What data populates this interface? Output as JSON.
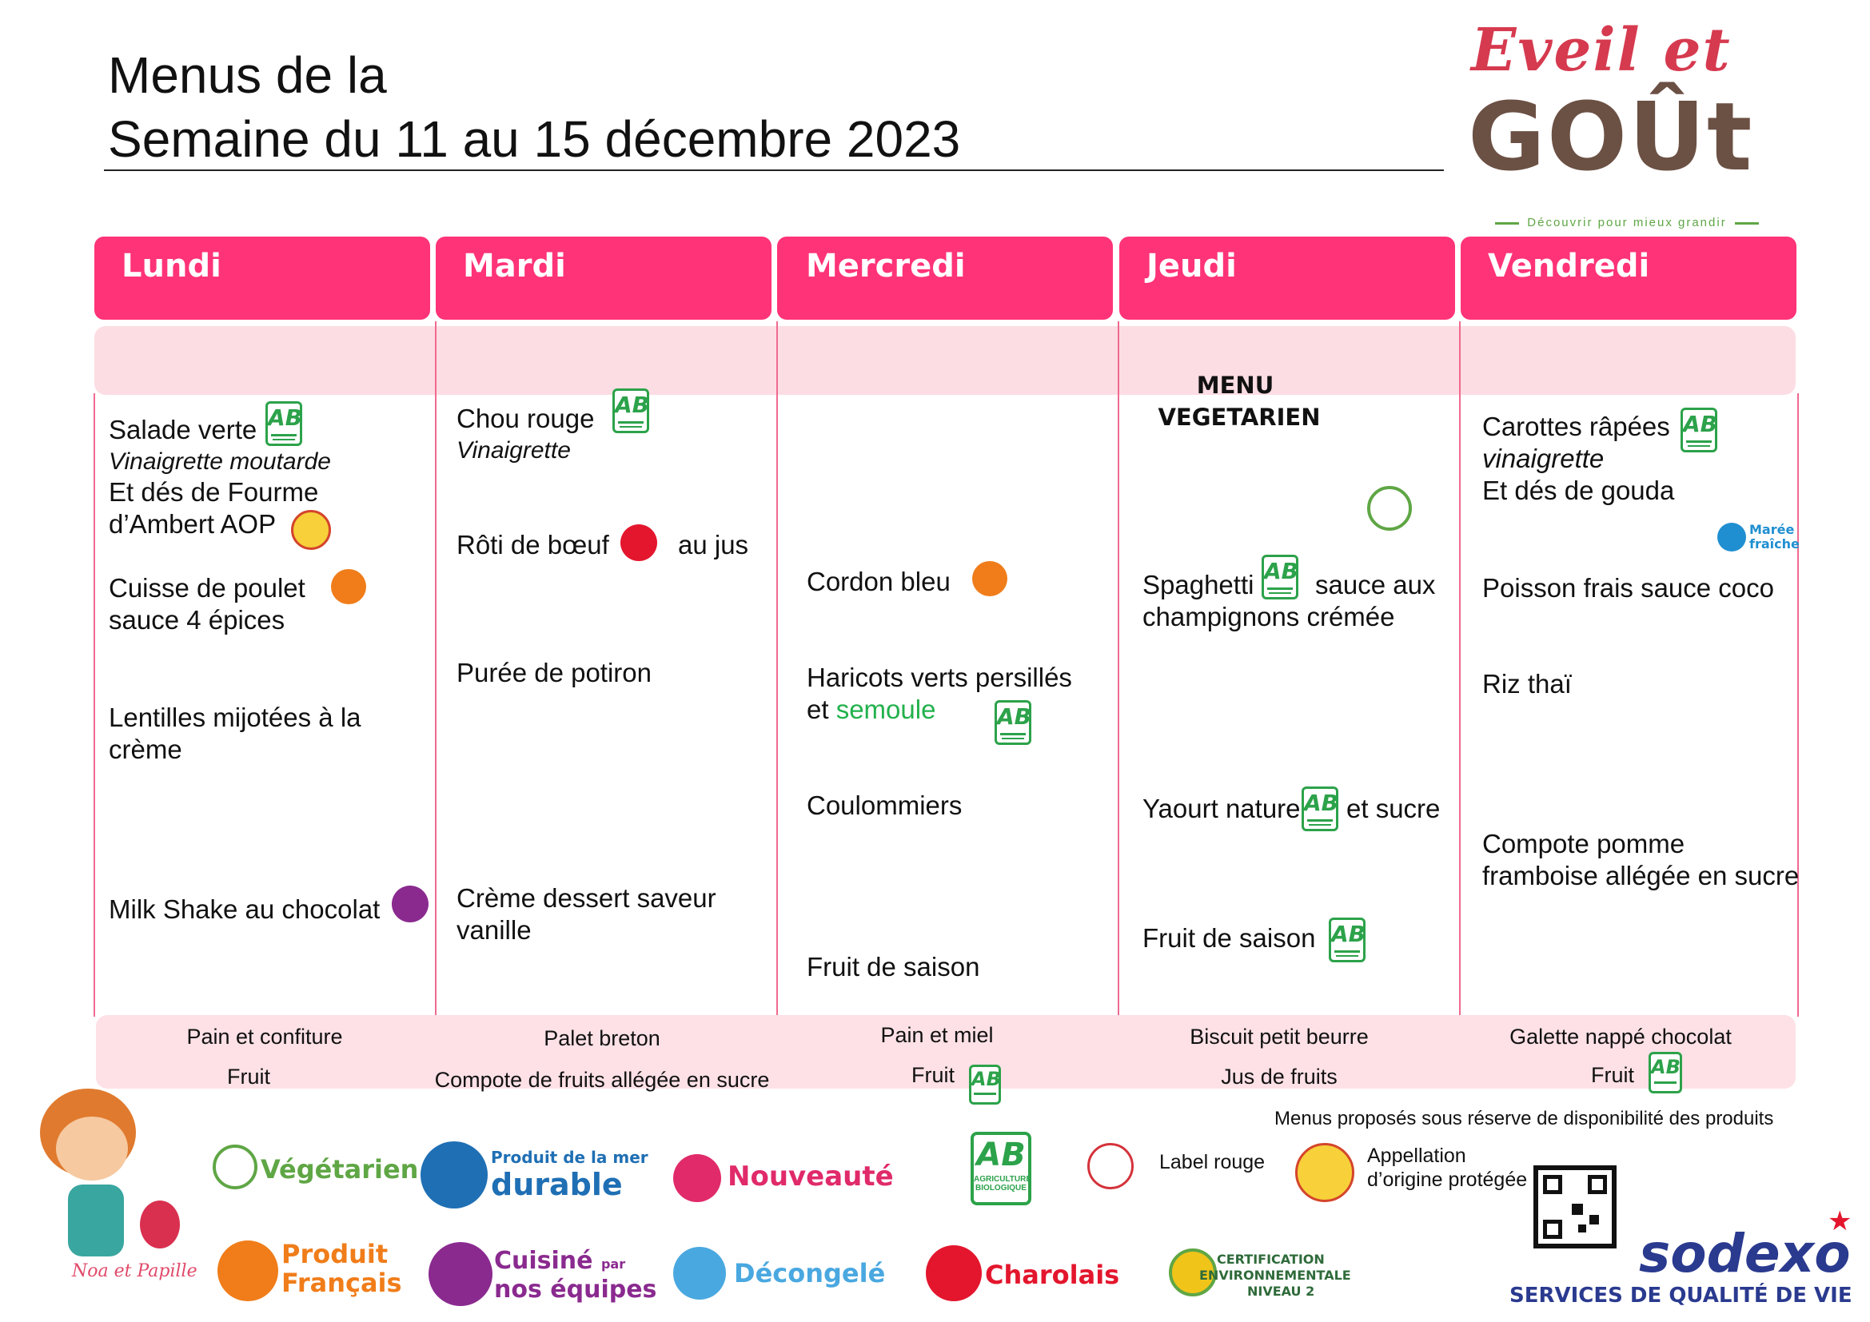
{
  "title": {
    "line1": "Menus de la",
    "line2": "Semaine du 11 au 15 décembre 2023"
  },
  "logo": {
    "eveil": "Eveil et",
    "gout": "GOÛt",
    "tagline": "Découvrir pour mieux grandir"
  },
  "days": [
    "Lundi",
    "Mardi",
    "Mercredi",
    "Jeudi",
    "Vendredi"
  ],
  "lundi": {
    "starter": "Salade verte",
    "starter_dressing": "Vinaigrette moutarde",
    "starter_extra1": "Et dés de Fourme",
    "starter_extra2": "d’Ambert AOP",
    "main1": "Cuisse de poulet",
    "main2": "sauce 4 épices",
    "side1": "Lentilles mijotées à la",
    "side2": "crème",
    "dessert": "Milk Shake au chocolat"
  },
  "mardi": {
    "starter": "Chou rouge",
    "starter_dressing": "Vinaigrette",
    "main": "Rôti de bœuf",
    "main_suffix": "au jus",
    "side": "Purée de potiron",
    "dessert1": "Crème dessert saveur",
    "dessert2": "vanille"
  },
  "mercredi": {
    "main": "Cordon bleu",
    "side1": "Haricots verts persillés",
    "side2_prefix": "et",
    "side2_green": "semoule",
    "cheese": "Coulommiers",
    "dessert": "Fruit de saison"
  },
  "jeudi": {
    "menu_title1": "MENU",
    "menu_title2": "VEGETARIEN",
    "main_prefix": "Spaghetti",
    "main_suffix": "sauce aux",
    "main2": "champignons crémée",
    "dairy_prefix": "Yaourt nature",
    "dairy_suffix": "et sucre",
    "dessert": "Fruit de saison"
  },
  "vendredi": {
    "starter": "Carottes râpées",
    "starter_dressing": "vinaigrette",
    "starter_extra": "Et dés de gouda",
    "mare_label1": "Marée",
    "mare_label2": "fraîche",
    "main": "Poisson frais sauce coco",
    "side": "Riz thaï",
    "dessert1": "Compote pomme",
    "dessert2": "framboise allégée en sucre"
  },
  "snacks": {
    "lundi": [
      "Pain et confiture",
      "Fruit"
    ],
    "mardi": [
      "Palet breton",
      "Compote de fruits allégée en sucre"
    ],
    "mercredi": [
      "Pain et  miel",
      "Fruit"
    ],
    "jeudi": [
      "Biscuit petit beurre",
      "Jus de fruits"
    ],
    "vendredi": [
      "Galette nappé chocolat",
      "Fruit"
    ]
  },
  "disclaimer": "Menus proposés sous réserve de disponibilité des produits",
  "legend": {
    "vegetarien": "Végétarien",
    "produit_mer_1": "Produit de la mer",
    "produit_mer_2": "durable",
    "nouveaute": "Nouveauté",
    "label_rouge": "Label rouge",
    "aop_1": "Appellation",
    "aop_2": "d’origine protégée",
    "produit_francais_1": "Produit",
    "produit_francais_2": "Français",
    "cuisine_1": "Cuisiné",
    "cuisine_par": "par",
    "cuisine_2": "nos équipes",
    "decongele": "Décongelé",
    "charolais": "Charolais",
    "certif_1": "CERTIFICATION",
    "certif_2": "ENVIRONNEMENTALE",
    "certif_3": "NIVEAU 2",
    "ab_1": "AGRICULTURE",
    "ab_2": "BIOLOGIQUE",
    "mascot": "Noa et Papille"
  },
  "sodexo": {
    "brand": "sodexo",
    "tagline": "SERVICES DE QUALITÉ DE VIE"
  },
  "colors": {
    "day_header": "#ff3378",
    "band": "#fcdde3",
    "ab_green": "#2ca24a",
    "french_orange": "#f07d1a"
  }
}
